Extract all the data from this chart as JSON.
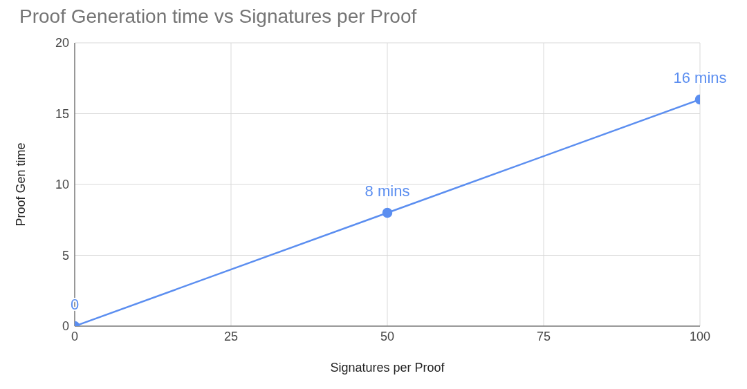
{
  "chart_data": {
    "type": "line",
    "title": "Proof Generation time vs Signatures per Proof",
    "xlabel": "Signatures per Proof",
    "ylabel": "Proof Gen time",
    "x": [
      0,
      50,
      100
    ],
    "series": [
      {
        "color": "#5b8ef0",
        "values": [
          0,
          8,
          16
        ],
        "value_labels": [
          "0",
          "8 mins",
          "16 mins"
        ]
      }
    ],
    "xlim": [
      0,
      100
    ],
    "xticks": [
      0,
      25,
      50,
      75,
      100
    ],
    "ylim": [
      0,
      20
    ],
    "yticks": [
      0,
      5,
      10,
      15,
      20
    ],
    "grid": true,
    "legend": false,
    "marker": "circle",
    "line_style": "solid"
  }
}
